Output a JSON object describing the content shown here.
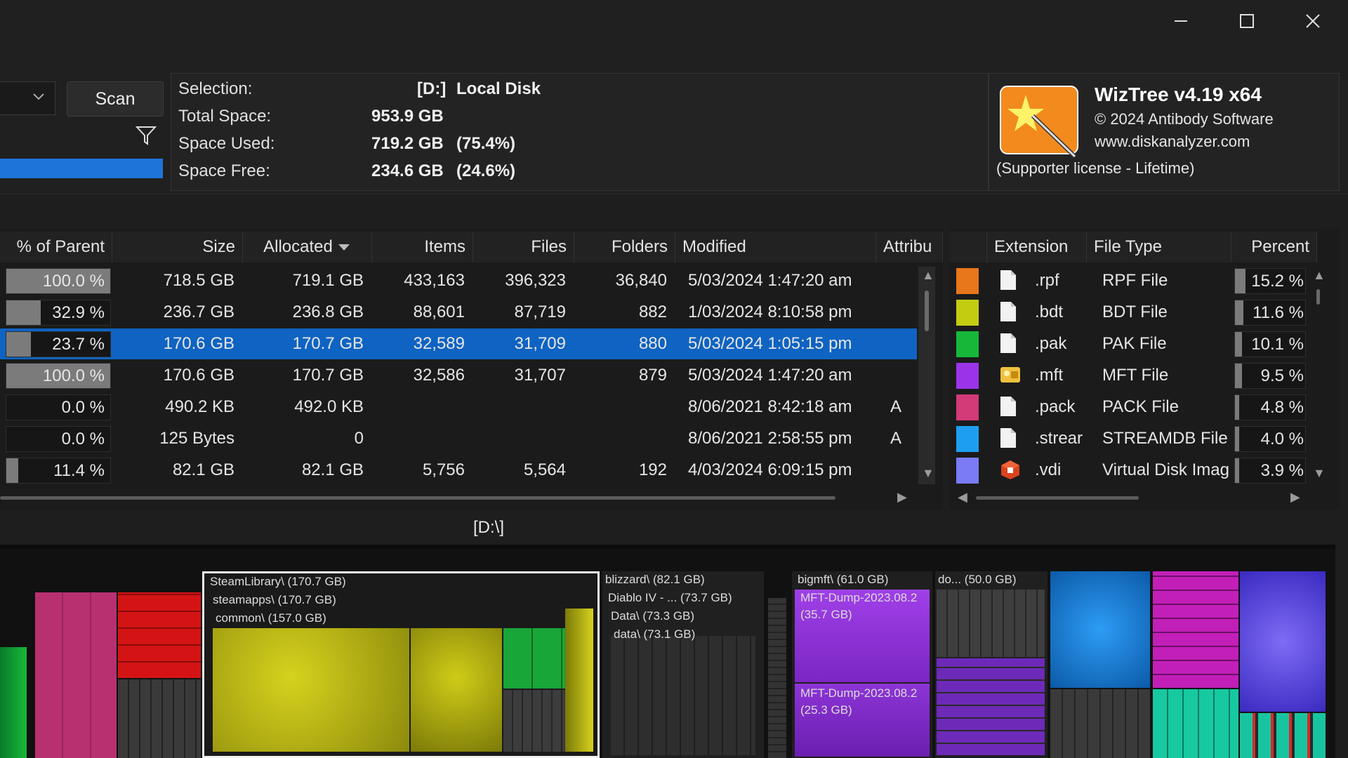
{
  "window": {
    "minimize_icon": "minimize-icon",
    "maximize_icon": "maximize-icon",
    "close_icon": "close-icon"
  },
  "toolbar": {
    "scan_label": "Scan",
    "filter_icon": "filter-icon",
    "progress_fraction": 1.0
  },
  "selection": {
    "selection_label": "Selection:",
    "selection_drive": "[D:]",
    "selection_name": "Local Disk",
    "total_label": "Total Space:",
    "total_value": "953.9 GB",
    "used_label": "Space Used:",
    "used_value": "719.2 GB",
    "used_pct": "(75.4%)",
    "free_label": "Space Free:",
    "free_value": "234.6 GB",
    "free_pct": "(24.6%)"
  },
  "about": {
    "title": "WizTree v4.19 x64",
    "copyright": "© 2024 Antibody Software",
    "website": "www.diskanalyzer.com",
    "license": "(Supporter license - Lifetime)"
  },
  "tree_table": {
    "columns": [
      "% of Parent",
      "Size",
      "Allocated",
      "Items",
      "Files",
      "Folders",
      "Modified",
      "Attribu"
    ],
    "sort_icon": "sort-down-icon",
    "rows": [
      {
        "pct": "100.0 %",
        "fill": 1.0,
        "size": "718.5 GB",
        "allocated": "719.1 GB",
        "items": "433,163",
        "files": "396,323",
        "folders": "36,840",
        "modified": "5/03/2024 1:47:20 am",
        "attr": "",
        "selected": false
      },
      {
        "pct": "32.9 %",
        "fill": 0.329,
        "size": "236.7 GB",
        "allocated": "236.8 GB",
        "items": "88,601",
        "files": "87,719",
        "folders": "882",
        "modified": "1/03/2024 8:10:58 pm",
        "attr": "",
        "selected": false
      },
      {
        "pct": "23.7 %",
        "fill": 0.237,
        "size": "170.6 GB",
        "allocated": "170.7 GB",
        "items": "32,589",
        "files": "31,709",
        "folders": "880",
        "modified": "5/03/2024 1:05:15 pm",
        "attr": "",
        "selected": true
      },
      {
        "pct": "100.0 %",
        "fill": 1.0,
        "size": "170.6 GB",
        "allocated": "170.7 GB",
        "items": "32,586",
        "files": "31,707",
        "folders": "879",
        "modified": "5/03/2024 1:47:20 am",
        "attr": "",
        "selected": false
      },
      {
        "pct": "0.0 %",
        "fill": 0.0,
        "size": "490.2 KB",
        "allocated": "492.0 KB",
        "items": "",
        "files": "",
        "folders": "",
        "modified": "8/06/2021 8:42:18 am",
        "attr": "A",
        "selected": false
      },
      {
        "pct": "0.0 %",
        "fill": 0.0,
        "size": "125 Bytes",
        "allocated": "0",
        "items": "",
        "files": "",
        "folders": "",
        "modified": "8/06/2021 2:58:55 pm",
        "attr": "A",
        "selected": false
      },
      {
        "pct": "11.4 %",
        "fill": 0.114,
        "size": "82.1 GB",
        "allocated": "82.1 GB",
        "items": "5,756",
        "files": "5,564",
        "folders": "192",
        "modified": "4/03/2024 6:09:15 pm",
        "attr": "",
        "selected": false
      }
    ]
  },
  "ext_table": {
    "columns": [
      "Extension",
      "File Type",
      "Percent"
    ],
    "rows": [
      {
        "color": "#e8761a",
        "icon": "file-icon",
        "ext": ".rpf",
        "type": "RPF File",
        "percent": "15.2 %",
        "fill": 0.152
      },
      {
        "color": "#c4cc12",
        "icon": "file-icon",
        "ext": ".bdt",
        "type": "BDT File",
        "percent": "11.6 %",
        "fill": 0.116
      },
      {
        "color": "#17b83a",
        "icon": "file-icon",
        "ext": ".pak",
        "type": "PAK File",
        "percent": "10.1 %",
        "fill": 0.101
      },
      {
        "color": "#9b34e8",
        "icon": "mft-icon",
        "ext": ".mft",
        "type": "MFT File",
        "percent": "9.5 %",
        "fill": 0.095
      },
      {
        "color": "#d23a78",
        "icon": "file-icon",
        "ext": ".pack",
        "type": "PACK File",
        "percent": "4.8 %",
        "fill": 0.048
      },
      {
        "color": "#1e9ef0",
        "icon": "file-icon",
        "ext": ".strear",
        "type": "STREAMDB File",
        "percent": "4.0 %",
        "fill": 0.04
      },
      {
        "color": "#7a7bf5",
        "icon": "virtualbox-icon",
        "ext": ".vdi",
        "type": "Virtual Disk Imag",
        "percent": "3.9 %",
        "fill": 0.039
      }
    ]
  },
  "path": "[D:\\]",
  "treemap": {
    "labels": {
      "steam1": "SteamLibrary\\ (170.7 GB)",
      "steam2": "steamapps\\ (170.7 GB)",
      "steam3": "common\\ (157.0 GB)",
      "blizz1": "blizzard\\ (82.1 GB)",
      "blizz2": "Diablo IV - ... (73.7 GB)",
      "blizz3": "Data\\ (73.3 GB)",
      "blizz4": "data\\ (73.1 GB)",
      "mft1": "bigmft\\ (61.0 GB)",
      "mft2": "MFT-Dump-2023.08.2",
      "mft2b": "(35.7 GB)",
      "mft3": "MFT-Dump-2023.08.2",
      "mft3b": "(25.3 GB)",
      "do1": "do... (50.0 GB)"
    }
  }
}
